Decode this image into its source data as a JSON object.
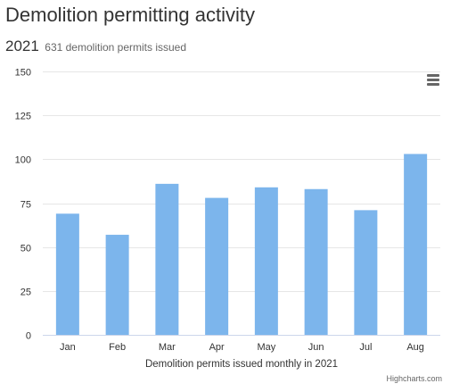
{
  "header": {
    "title": "Demolition permitting activity",
    "year": "2021",
    "summary": "631 demolition permits issued"
  },
  "chart_data": {
    "type": "bar",
    "categories": [
      "Jan",
      "Feb",
      "Mar",
      "Apr",
      "May",
      "Jun",
      "Jul",
      "Aug"
    ],
    "series": [
      {
        "values": [
          69,
          57,
          86,
          78,
          84,
          83,
          71,
          103
        ]
      }
    ],
    "xlabel": "Demolition permits issued monthly in 2021",
    "ylabel": "",
    "ylim": [
      0,
      150
    ],
    "yticks": [
      0,
      25,
      50,
      75,
      100,
      125,
      150
    ],
    "grid": true,
    "legend": "none",
    "bar_color": "#7cb5ec"
  },
  "menu": {
    "icon": "hamburger-menu-icon"
  },
  "credits": "Highcharts.com"
}
